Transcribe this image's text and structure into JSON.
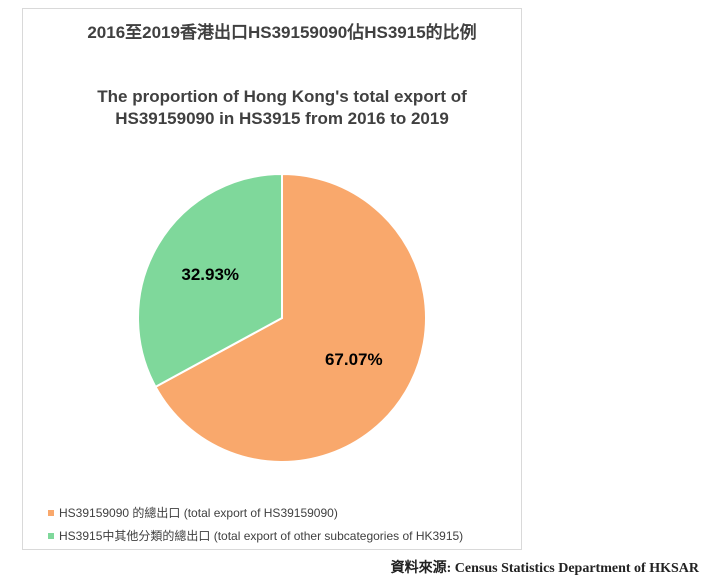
{
  "chart_data": {
    "type": "pie",
    "title": "2016至2019香港出口HS39159090佔HS3915的比例",
    "subtitle": "The proportion of Hong Kong's total export of HS39159090 in HS3915 from 2016 to 2019",
    "categories": [
      "HS39159090 的總出口 (total export of HS39159090)",
      "HS3915中其他分類的總出口 (total export of other subcategories of HK3915)"
    ],
    "values": [
      67.07,
      32.93
    ],
    "value_labels": [
      "67.07%",
      "32.93%"
    ],
    "colors": [
      "#f9a86c",
      "#7fd89b"
    ],
    "source": "資料來源: Census Statistics Department of HKSAR"
  }
}
